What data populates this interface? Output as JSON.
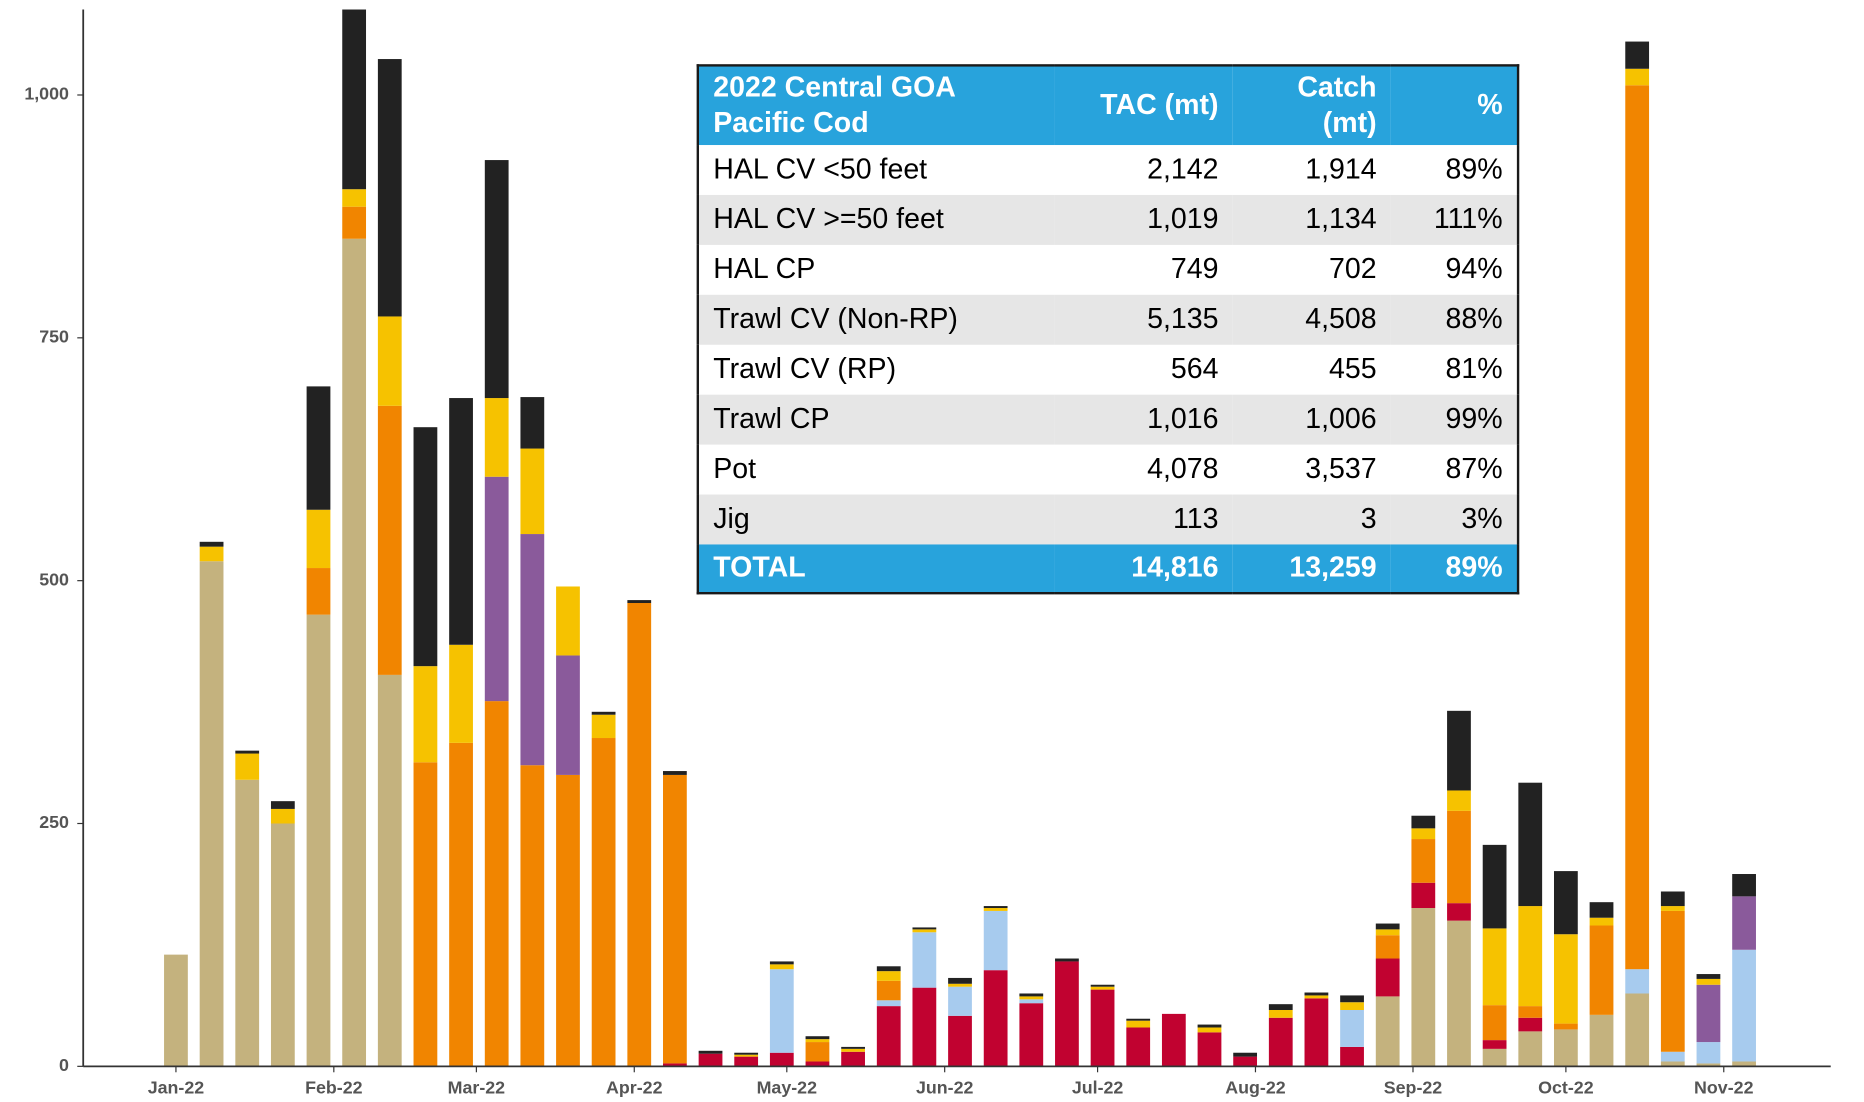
{
  "chart_data": {
    "type": "stacked-bar",
    "categories": [
      null,
      null,
      null,
      null,
      null,
      null,
      null,
      null,
      null,
      null,
      null,
      null,
      null,
      null,
      null,
      null,
      null,
      null,
      null,
      null,
      null,
      null,
      null,
      null,
      null,
      null,
      null,
      null,
      null,
      null,
      null,
      null,
      null,
      null,
      null,
      null,
      null,
      null,
      null,
      null,
      null,
      null,
      null,
      null,
      null
    ],
    "series": [
      {
        "color": "#c4b27e",
        "values": [
          115,
          520,
          295,
          250,
          465,
          852,
          403,
          0,
          0,
          0,
          0,
          0,
          0,
          0,
          0,
          0,
          0,
          0,
          0,
          0,
          0,
          0,
          0,
          0,
          0,
          0,
          0,
          0,
          0,
          0,
          0,
          0,
          0,
          0,
          72,
          163,
          150,
          18,
          36,
          38,
          53,
          75,
          5,
          3,
          5
        ]
      },
      {
        "color": "#c10230",
        "values": [
          0,
          0,
          0,
          0,
          0,
          0,
          0,
          0,
          0,
          0,
          0,
          0,
          0,
          0,
          3,
          13,
          10,
          14,
          5,
          15,
          62,
          81,
          52,
          99,
          65,
          108,
          79,
          40,
          54,
          35,
          10,
          50,
          70,
          20,
          39,
          26,
          18,
          9,
          14,
          0,
          0,
          0,
          0,
          0,
          0
        ]
      },
      {
        "color": "#a7cbee",
        "values": [
          0,
          0,
          0,
          0,
          0,
          0,
          0,
          0,
          0,
          0,
          0,
          0,
          0,
          0,
          0,
          0,
          0,
          86,
          0,
          0,
          6,
          57,
          30,
          61,
          4,
          0,
          0,
          0,
          0,
          0,
          0,
          0,
          0,
          38,
          0,
          0,
          0,
          0,
          0,
          0,
          0,
          25,
          10,
          22,
          115
        ]
      },
      {
        "color": "#f18500",
        "values": [
          0,
          0,
          0,
          0,
          48,
          33,
          277,
          313,
          333,
          376,
          310,
          300,
          338,
          477,
          297,
          0,
          0,
          0,
          20,
          0,
          20,
          0,
          0,
          0,
          0,
          0,
          0,
          0,
          0,
          0,
          0,
          0,
          0,
          0,
          24,
          45,
          95,
          36,
          12,
          6,
          92,
          910,
          145,
          0,
          0
        ]
      },
      {
        "color": "#8a5a9b",
        "values": [
          0,
          0,
          0,
          0,
          0,
          0,
          0,
          0,
          0,
          231,
          238,
          123,
          0,
          0,
          0,
          0,
          0,
          0,
          0,
          0,
          0,
          0,
          0,
          0,
          0,
          0,
          0,
          0,
          0,
          0,
          0,
          0,
          0,
          0,
          0,
          0,
          0,
          0,
          0,
          0,
          0,
          0,
          0,
          59,
          55
        ]
      },
      {
        "color": "#f6c200",
        "values": [
          0,
          15,
          27,
          15,
          60,
          18,
          92,
          99,
          101,
          81,
          88,
          71,
          24,
          0,
          0,
          0,
          2,
          5,
          3,
          3,
          10,
          3,
          3,
          3,
          3,
          0,
          3,
          7,
          0,
          5,
          0,
          8,
          3,
          8,
          6,
          11,
          21,
          79,
          103,
          92,
          8,
          17,
          5,
          6,
          0
        ]
      },
      {
        "color": "#222222",
        "values": [
          0,
          5,
          3,
          8,
          127,
          185,
          265,
          246,
          254,
          245,
          53,
          0,
          3,
          3,
          4,
          3,
          2,
          3,
          3,
          2,
          5,
          2,
          6,
          2,
          3,
          3,
          2,
          2,
          0,
          3,
          4,
          6,
          3,
          7,
          6,
          13,
          82,
          86,
          127,
          65,
          16,
          28,
          15,
          5,
          23
        ]
      }
    ],
    "ylim": [
      0,
      1088
    ],
    "yticks": [
      0,
      250,
      500,
      750,
      {
        "value": 1000,
        "label": "1,000"
      }
    ],
    "xticks": [
      {
        "value": 0,
        "label": "Jan-22"
      },
      {
        "value": 4.43,
        "label": "Feb-22"
      },
      {
        "value": 8.43,
        "label": "Mar-22"
      },
      {
        "value": 12.86,
        "label": "Apr-22"
      },
      {
        "value": 17.14,
        "label": "May-22"
      },
      {
        "value": 21.57,
        "label": "Jun-22"
      },
      {
        "value": 25.86,
        "label": "Jul-22"
      },
      {
        "value": 30.29,
        "label": "Aug-22"
      },
      {
        "value": 34.71,
        "label": "Sep-22"
      },
      {
        "value": 39,
        "label": "Oct-22"
      },
      {
        "value": 43.43,
        "label": "Nov-22"
      }
    ],
    "grid": false
  },
  "table": {
    "header": [
      "2022 Central GOA Pacific Cod",
      "TAC (mt)",
      "Catch (mt)",
      "%"
    ],
    "rows": [
      [
        "HAL CV <50 feet",
        "2,142",
        "1,914",
        "89%"
      ],
      [
        "HAL CV >=50 feet",
        "1,019",
        "1,134",
        "111%"
      ],
      [
        "HAL CP",
        "749",
        "702",
        "94%"
      ],
      [
        "Trawl CV (Non-RP)",
        "5,135",
        "4,508",
        "88%"
      ],
      [
        "Trawl CV (RP)",
        "564",
        "455",
        "81%"
      ],
      [
        "Trawl CP",
        "1,016",
        "1,006",
        "99%"
      ],
      [
        "Pot",
        "4,078",
        "3,537",
        "87%"
      ],
      [
        "Jig",
        "113",
        "3",
        "3%"
      ]
    ],
    "total": [
      "TOTAL",
      "14,816",
      "13,259",
      "89%"
    ]
  }
}
